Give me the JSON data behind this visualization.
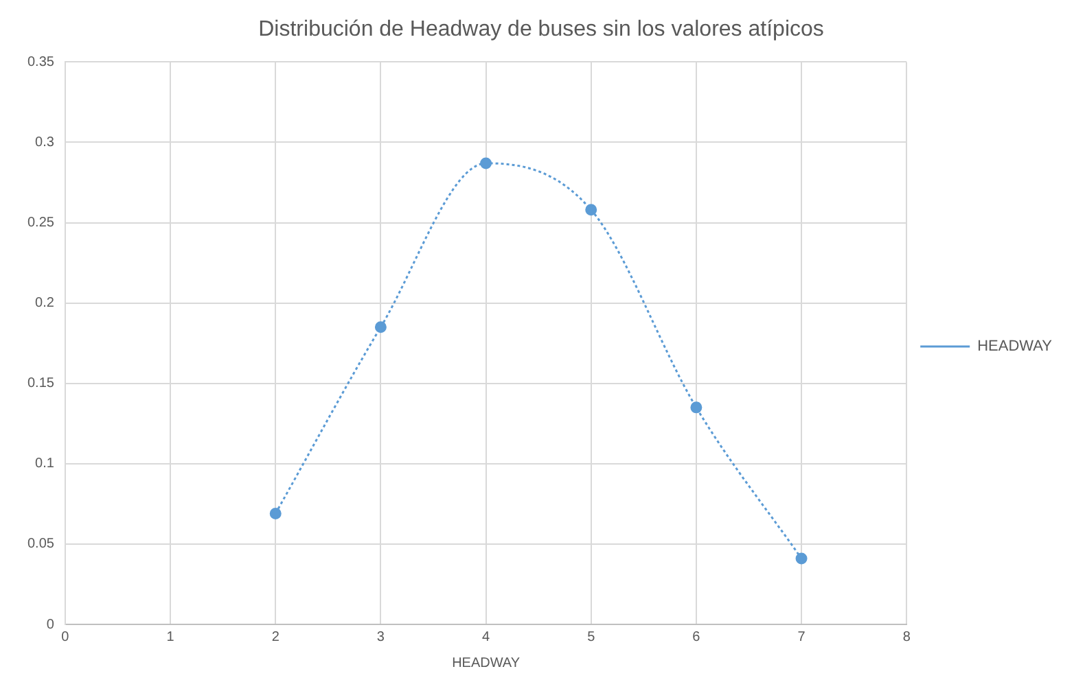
{
  "chart_data": {
    "type": "line",
    "title": "Distribución de Headway de buses sin los valores atípicos",
    "xlabel": "HEADWAY",
    "x": [
      2,
      3,
      4,
      5,
      6,
      7
    ],
    "series": [
      {
        "name": "HEADWAY",
        "color": "#5b9bd5",
        "values": [
          0.069,
          0.185,
          0.287,
          0.258,
          0.135,
          0.041
        ]
      }
    ],
    "xlim": [
      0,
      8
    ],
    "xticks": [
      0,
      1,
      2,
      3,
      4,
      5,
      6,
      7,
      8
    ],
    "ylim": [
      0,
      0.35
    ],
    "yticks": [
      0,
      0.05,
      0.1,
      0.15,
      0.2,
      0.25,
      0.3,
      0.35
    ],
    "grid": true,
    "legend": "right",
    "marker": "circle",
    "line_style": "dotted"
  }
}
